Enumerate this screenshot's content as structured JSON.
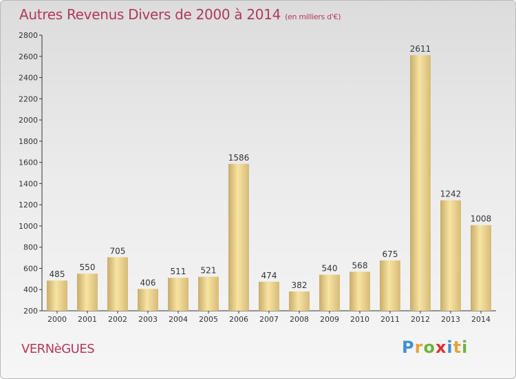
{
  "title": "Autres Revenus Divers de 2000 à 2014",
  "unit": "(en milliers d'€)",
  "city": "VERNèGUES",
  "logo": "Proxiti",
  "chart_data": {
    "type": "bar",
    "title": "Autres Revenus Divers de 2000 à 2014",
    "subtitle": "(en milliers d'€)",
    "categories": [
      "2000",
      "2001",
      "2002",
      "2003",
      "2004",
      "2005",
      "2006",
      "2007",
      "2008",
      "2009",
      "2010",
      "2011",
      "2012",
      "2013",
      "2014"
    ],
    "values": [
      485,
      550,
      705,
      406,
      511,
      521,
      1586,
      474,
      382,
      540,
      568,
      675,
      2611,
      1242,
      1008
    ],
    "ylim": [
      200,
      2800
    ],
    "yticks": [
      200,
      400,
      600,
      800,
      1000,
      1200,
      1400,
      1600,
      1800,
      2000,
      2200,
      2400,
      2600,
      2800
    ],
    "grid": false,
    "colors": {
      "bar_light": "#f8e3a2",
      "bar_dark": "#c8ac69",
      "text": "#b03a58"
    }
  }
}
